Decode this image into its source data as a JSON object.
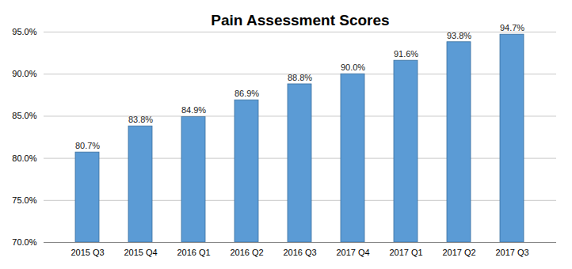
{
  "chart_data": {
    "type": "bar",
    "title": "Pain Assessment Scores",
    "categories": [
      "2015 Q3",
      "2015 Q4",
      "2016 Q1",
      "2016 Q2",
      "2016 Q3",
      "2017 Q4",
      "2017 Q1",
      "2017 Q2",
      "2017 Q3"
    ],
    "values": [
      80.7,
      83.8,
      84.9,
      86.9,
      88.8,
      90.0,
      91.6,
      93.8,
      94.7
    ],
    "value_labels": [
      "80.7%",
      "83.8%",
      "84.9%",
      "86.9%",
      "88.8%",
      "90.0%",
      "91.6%",
      "93.8%",
      "94.7%"
    ],
    "color": "#5b9bd5",
    "ylim": [
      70,
      95
    ],
    "yticks": [
      {
        "value": 70,
        "label": "70.0%"
      },
      {
        "value": 75,
        "label": "75.0%"
      },
      {
        "value": 80,
        "label": "80.0%"
      },
      {
        "value": 85,
        "label": "85.0%"
      },
      {
        "value": 90,
        "label": "90.0%"
      },
      {
        "value": 95,
        "label": "95.0%"
      }
    ],
    "grid": true,
    "data_labels": true
  }
}
